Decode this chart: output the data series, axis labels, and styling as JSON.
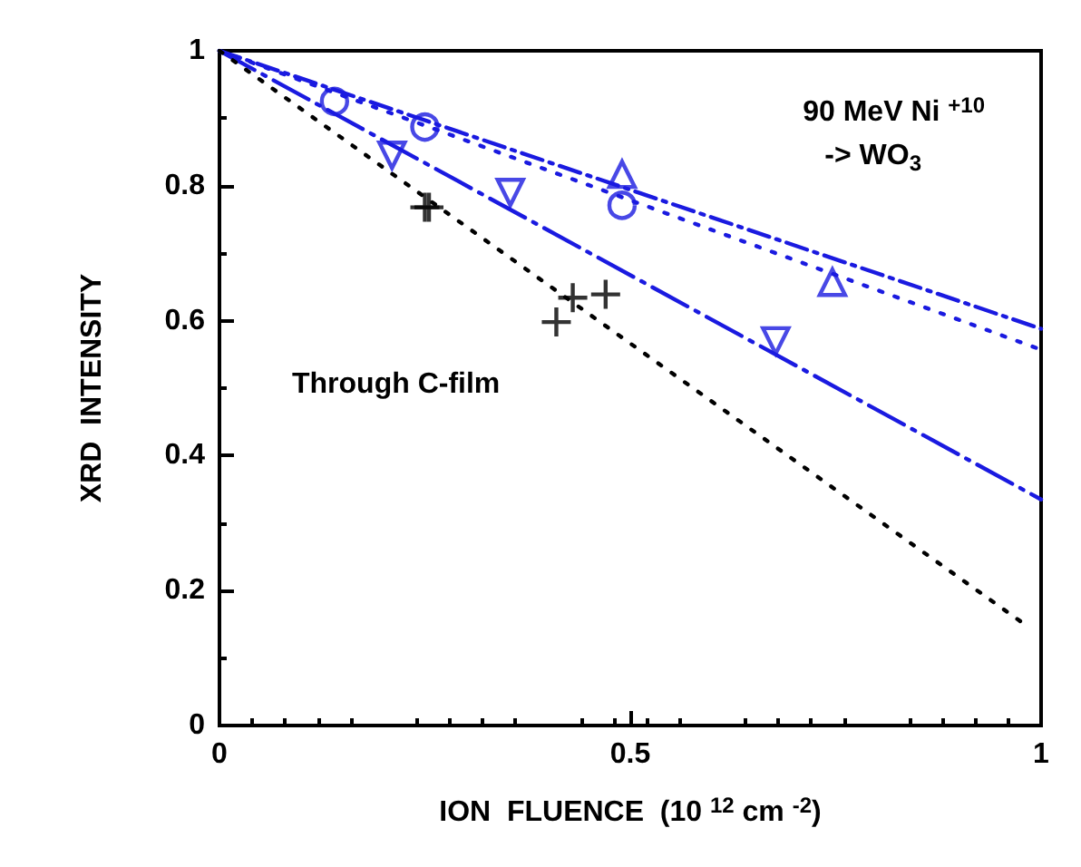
{
  "chart_data": {
    "type": "scatter",
    "xlabel": "ION  FLUENCE  (10 $^{12}$ cm $^{-2}$)",
    "ylabel": "XRD  INTENSITY",
    "annotations": [
      "90 MeV Ni $^{+10}$",
      "-> WO$_{3}$",
      "Through C-film"
    ],
    "xlim": [
      0,
      1
    ],
    "xticks": [
      0,
      0.5,
      1
    ],
    "ylim": [
      0,
      1
    ],
    "yticks": [
      0,
      0.2,
      0.4,
      0.6,
      0.8,
      1
    ],
    "grid": false,
    "series": [
      {
        "marker": "circle",
        "color": "#1a1ae0",
        "x": [
          0.14,
          0.25,
          0.49
        ],
        "values": [
          0.925,
          0.887,
          0.771
        ]
      },
      {
        "marker": "triangle",
        "color": "#1a1ae0",
        "x": [
          0.49,
          0.746
        ],
        "values": [
          0.817,
          0.657
        ]
      },
      {
        "marker": "triangle_down",
        "color": "#1a1ae0",
        "x": [
          0.21,
          0.354,
          0.677
        ],
        "values": [
          0.845,
          0.79,
          0.57
        ]
      },
      {
        "marker": "cross",
        "color": "#000000",
        "x": [
          0.25,
          0.255,
          0.41,
          0.43,
          0.47
        ],
        "values": [
          0.768,
          0.768,
          0.598,
          0.634,
          0.639
        ]
      },
      {
        "type": "line",
        "marker": "none",
        "line_style": "dashdot",
        "color": "#1a1ae0",
        "x": [
          0,
          1
        ],
        "values": [
          1,
          0.588
        ]
      },
      {
        "type": "line",
        "marker": "none",
        "line_style": "dotted",
        "color": "#1a1ae0",
        "x": [
          0,
          1
        ],
        "values": [
          1,
          0.557
        ]
      },
      {
        "type": "line",
        "marker": "none",
        "line_style": "longdashdot",
        "color": "#1a1ae0",
        "x": [
          0,
          1
        ],
        "values": [
          1,
          0.335
        ]
      },
      {
        "type": "line",
        "marker": "none",
        "line_style": "dotted",
        "color": "#000000",
        "x": [
          0,
          0.98
        ],
        "values": [
          1,
          0.15
        ]
      }
    ]
  }
}
